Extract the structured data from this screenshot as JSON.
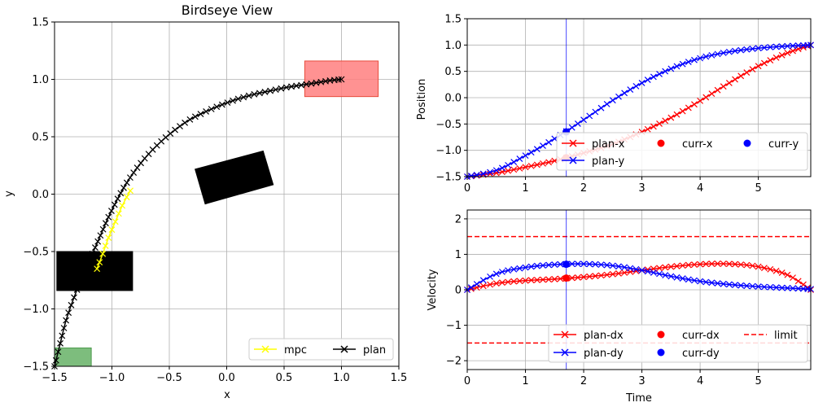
{
  "chart_data": [
    {
      "type": "scatter",
      "title": "Birdseye View",
      "xlabel": "x",
      "ylabel": "y",
      "xlim": [
        -1.5,
        1.5
      ],
      "ylim": [
        -1.5,
        1.5
      ],
      "xticks": [
        "−1.5",
        "−1.0",
        "−0.5",
        "0.0",
        "0.5",
        "1.0",
        "1.5"
      ],
      "yticks": [
        "−1.5",
        "−1.0",
        "−0.5",
        "0.0",
        "0.5",
        "1.0",
        "1.5"
      ],
      "grid": true,
      "legend_position": "lower-right",
      "legend": [
        {
          "label": "mpc",
          "color": "#ffff00"
        },
        {
          "label": "plan",
          "color": "#000000"
        }
      ],
      "regions": [
        {
          "kind": "goal",
          "color": "#ff7f7f",
          "x": [
            0.68,
            1.32
          ],
          "y": [
            0.85,
            1.16
          ]
        },
        {
          "kind": "start",
          "color": "#66b266",
          "x": [
            -1.5,
            -1.18
          ],
          "y": [
            -1.5,
            -1.34
          ]
        },
        {
          "kind": "obstacle",
          "color": "#000000",
          "x": [
            -1.48,
            -0.82
          ],
          "y": [
            -0.84,
            -0.5
          ]
        },
        {
          "kind": "obstacle-rotated",
          "color": "#000000",
          "corners": [
            [
              -0.28,
              0.22
            ],
            [
              0.32,
              0.38
            ],
            [
              0.41,
              0.08
            ],
            [
              -0.19,
              -0.09
            ]
          ]
        }
      ],
      "series": [
        {
          "name": "plan",
          "color": "#000000",
          "points": [
            [
              -1.5,
              -1.5
            ],
            [
              -1.45,
              -1.3
            ],
            [
              -1.4,
              -1.1
            ],
            [
              -1.33,
              -0.9
            ],
            [
              -1.25,
              -0.7
            ],
            [
              -1.17,
              -0.52
            ],
            [
              -1.1,
              -0.36
            ],
            [
              -1.03,
              -0.2
            ],
            [
              -0.95,
              -0.04
            ],
            [
              -0.87,
              0.1
            ],
            [
              -0.78,
              0.23
            ],
            [
              -0.68,
              0.35
            ],
            [
              -0.57,
              0.46
            ],
            [
              -0.45,
              0.56
            ],
            [
              -0.32,
              0.65
            ],
            [
              -0.18,
              0.72
            ],
            [
              -0.04,
              0.78
            ],
            [
              0.1,
              0.83
            ],
            [
              0.24,
              0.87
            ],
            [
              0.38,
              0.9
            ],
            [
              0.52,
              0.93
            ],
            [
              0.65,
              0.95
            ],
            [
              0.78,
              0.97
            ],
            [
              0.9,
              0.99
            ],
            [
              1.0,
              1.0
            ]
          ]
        },
        {
          "name": "mpc",
          "color": "#ffff00",
          "points": [
            [
              -1.13,
              -0.65
            ],
            [
              -1.08,
              -0.52
            ],
            [
              -1.03,
              -0.38
            ],
            [
              -0.97,
              -0.24
            ],
            [
              -0.91,
              -0.1
            ],
            [
              -0.84,
              0.03
            ]
          ]
        }
      ]
    },
    {
      "type": "line",
      "title": "",
      "xlabel": "",
      "ylabel": "Position",
      "xlim": [
        0,
        5.9
      ],
      "ylim": [
        -1.5,
        1.5
      ],
      "xticks": [
        "0",
        "1",
        "2",
        "3",
        "4",
        "5"
      ],
      "yticks": [
        "−1.5",
        "−1.0",
        "−0.5",
        "0.0",
        "0.5",
        "1.0",
        "1.5"
      ],
      "grid": true,
      "current_time": 1.7,
      "legend_position": "lower-right",
      "legend": [
        {
          "label": "plan-x",
          "color": "#ff0000",
          "marker": "x"
        },
        {
          "label": "curr-x",
          "color": "#ff0000",
          "marker": "o"
        },
        {
          "label": "curr-y",
          "color": "#0000ff",
          "marker": "o"
        },
        {
          "label": "plan-y",
          "color": "#0000ff",
          "marker": "x"
        }
      ],
      "series": [
        {
          "name": "plan-x",
          "color": "#ff0000",
          "x": [
            0,
            0.5,
            1,
            1.5,
            2,
            2.5,
            3,
            3.5,
            4,
            4.5,
            5,
            5.5,
            5.9
          ],
          "y": [
            -1.5,
            -1.43,
            -1.32,
            -1.2,
            -1.05,
            -0.88,
            -0.65,
            -0.38,
            -0.06,
            0.28,
            0.6,
            0.85,
            1.0
          ]
        },
        {
          "name": "plan-y",
          "color": "#0000ff",
          "x": [
            0,
            0.5,
            1,
            1.5,
            2,
            2.5,
            3,
            3.5,
            4,
            4.5,
            5,
            5.5,
            5.9
          ],
          "y": [
            -1.5,
            -1.38,
            -1.1,
            -0.78,
            -0.42,
            -0.05,
            0.28,
            0.55,
            0.75,
            0.87,
            0.94,
            0.98,
            1.0
          ]
        },
        {
          "name": "curr-x",
          "color": "#ff0000",
          "x": [
            1.7
          ],
          "y": [
            -1.14
          ]
        },
        {
          "name": "curr-y",
          "color": "#0000ff",
          "x": [
            1.7
          ],
          "y": [
            -0.65
          ]
        }
      ]
    },
    {
      "type": "line",
      "title": "",
      "xlabel": "Time",
      "ylabel": "Velocity",
      "xlim": [
        0,
        5.9
      ],
      "ylim": [
        -2.25,
        2.25
      ],
      "xticks": [
        "0",
        "1",
        "2",
        "3",
        "4",
        "5"
      ],
      "yticks": [
        "−2",
        "−1",
        "0",
        "1",
        "2"
      ],
      "grid": true,
      "current_time": 1.7,
      "limit": 1.5,
      "legend_position": "lower-right",
      "legend": [
        {
          "label": "plan-dx",
          "color": "#ff0000",
          "marker": "x"
        },
        {
          "label": "curr-dx",
          "color": "#ff0000",
          "marker": "o"
        },
        {
          "label": "limit",
          "color": "#ff0000",
          "marker": "dash"
        },
        {
          "label": "plan-dy",
          "color": "#0000ff",
          "marker": "x"
        },
        {
          "label": "curr-dy",
          "color": "#0000ff",
          "marker": "o"
        }
      ],
      "series": [
        {
          "name": "plan-dx",
          "color": "#ff0000",
          "x": [
            0,
            0.5,
            1,
            1.5,
            2,
            2.5,
            3,
            3.5,
            4,
            4.5,
            5,
            5.5,
            5.9
          ],
          "y": [
            0.0,
            0.18,
            0.26,
            0.3,
            0.36,
            0.44,
            0.55,
            0.65,
            0.72,
            0.73,
            0.65,
            0.42,
            0.0
          ]
        },
        {
          "name": "plan-dy",
          "color": "#0000ff",
          "x": [
            0,
            0.5,
            1,
            1.5,
            2,
            2.5,
            3,
            3.5,
            4,
            4.5,
            5,
            5.5,
            5.9
          ],
          "y": [
            0.0,
            0.45,
            0.63,
            0.71,
            0.73,
            0.68,
            0.55,
            0.38,
            0.24,
            0.15,
            0.09,
            0.05,
            0.02
          ]
        },
        {
          "name": "curr-dx",
          "color": "#ff0000",
          "x": [
            1.7
          ],
          "y": [
            0.33
          ]
        },
        {
          "name": "curr-dy",
          "color": "#0000ff",
          "x": [
            1.7
          ],
          "y": [
            0.72
          ]
        }
      ]
    }
  ]
}
